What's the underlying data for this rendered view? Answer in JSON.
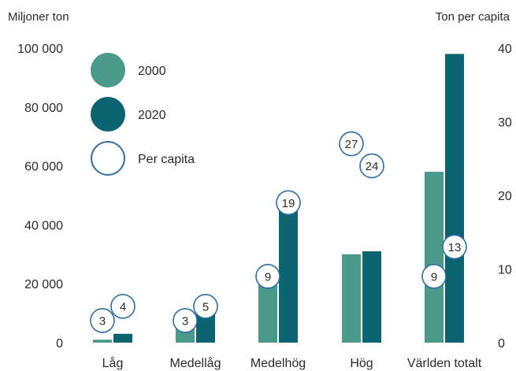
{
  "chart_data": {
    "type": "bar",
    "left_axis_title": "Miljoner ton",
    "right_axis_title": "Ton per capita",
    "categories": [
      "Låg",
      "Medellåg",
      "Medelhög",
      "Hög",
      "Världen totalt"
    ],
    "series": [
      {
        "name": "2000",
        "values": [
          1000,
          5000,
          20000,
          30000,
          58000
        ],
        "color": "#4a9a8b"
      },
      {
        "name": "2020",
        "values": [
          3000,
          12000,
          46000,
          31000,
          98000
        ],
        "color": "#0b6470"
      }
    ],
    "per_capita": {
      "name": "Per capita",
      "color": "#2f6fa5",
      "values_2000": [
        3,
        3,
        9,
        27,
        9
      ],
      "values_2020": [
        4,
        5,
        19,
        24,
        13
      ]
    },
    "ylim_left": [
      0,
      100000
    ],
    "ylim_right": [
      0,
      40
    ],
    "left_ticks": [
      {
        "value": 0,
        "label": "0"
      },
      {
        "value": 20000,
        "label": "20 000"
      },
      {
        "value": 40000,
        "label": "40 000"
      },
      {
        "value": 60000,
        "label": "60 000"
      },
      {
        "value": 80000,
        "label": "80 000"
      },
      {
        "value": 100000,
        "label": "100 000"
      }
    ],
    "right_ticks": [
      {
        "value": 0,
        "label": "0"
      },
      {
        "value": 10,
        "label": "10"
      },
      {
        "value": 20,
        "label": "20"
      },
      {
        "value": 30,
        "label": "30"
      },
      {
        "value": 40,
        "label": "40"
      }
    ],
    "grid": false,
    "legend": "top-left"
  }
}
